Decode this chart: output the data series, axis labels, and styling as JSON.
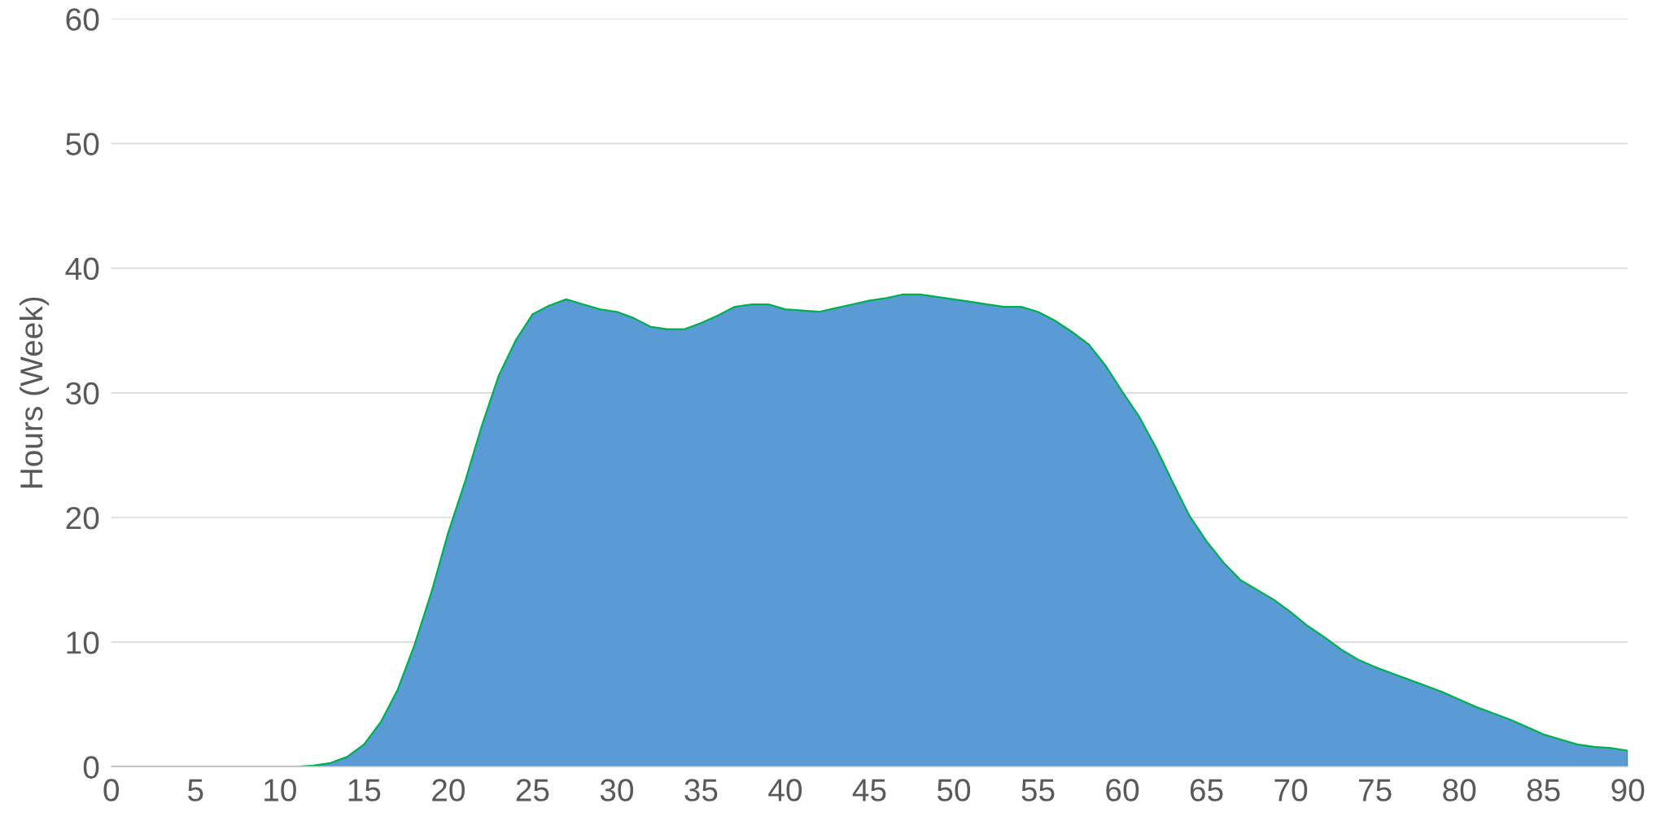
{
  "chart_data": {
    "type": "area",
    "ylabel": "Hours (Week)",
    "x": [
      0,
      1,
      2,
      3,
      4,
      5,
      6,
      7,
      8,
      9,
      10,
      11,
      12,
      13,
      14,
      15,
      16,
      17,
      18,
      19,
      20,
      21,
      22,
      23,
      24,
      25,
      26,
      27,
      28,
      29,
      30,
      31,
      32,
      33,
      34,
      35,
      36,
      37,
      38,
      39,
      40,
      41,
      42,
      43,
      44,
      45,
      46,
      47,
      48,
      49,
      50,
      51,
      52,
      53,
      54,
      55,
      56,
      57,
      58,
      59,
      60,
      61,
      62,
      63,
      64,
      65,
      66,
      67,
      68,
      69,
      70,
      71,
      72,
      73,
      74,
      75,
      76,
      77,
      78,
      79,
      80,
      81,
      82,
      83,
      84,
      85,
      86,
      87,
      88,
      89,
      90
    ],
    "series": [
      {
        "color": "#5b9bd5",
        "values": [
          0,
          0,
          0,
          0,
          0,
          0,
          0,
          0,
          0,
          0,
          0,
          0,
          0.1,
          0.3,
          0.8,
          1.8,
          3.6,
          6.2,
          9.8,
          14.0,
          18.8,
          22.9,
          27.4,
          31.4,
          34.2,
          36.3,
          37.0,
          37.5,
          37.1,
          36.7,
          36.5,
          36.0,
          35.3,
          35.1,
          35.1,
          35.6,
          36.2,
          36.9,
          37.1,
          37.1,
          36.7,
          36.6,
          36.5,
          36.8,
          37.1,
          37.4,
          37.6,
          37.9,
          37.9,
          37.7,
          37.5,
          37.3,
          37.1,
          36.9,
          36.9,
          36.5,
          35.8,
          34.9,
          33.9,
          32.2,
          30.1,
          28.1,
          25.6,
          22.8,
          20.1,
          18.1,
          16.4,
          15.0,
          14.2,
          13.4,
          12.4,
          11.3,
          10.4,
          9.4,
          8.6,
          8.0,
          7.5,
          7.0,
          6.5,
          6.0,
          5.4,
          4.8,
          4.3,
          3.8,
          3.2,
          2.6,
          2.2,
          1.8,
          1.6,
          1.5,
          1.3
        ]
      }
    ],
    "xlim": [
      0,
      90
    ],
    "xticks": [
      0,
      5,
      10,
      15,
      20,
      25,
      30,
      35,
      40,
      45,
      50,
      55,
      60,
      65,
      70,
      75,
      80,
      85,
      90
    ],
    "ylim": [
      0,
      60
    ],
    "yticks": [
      0,
      10,
      20,
      30,
      40,
      50,
      60
    ],
    "grid": "y"
  }
}
